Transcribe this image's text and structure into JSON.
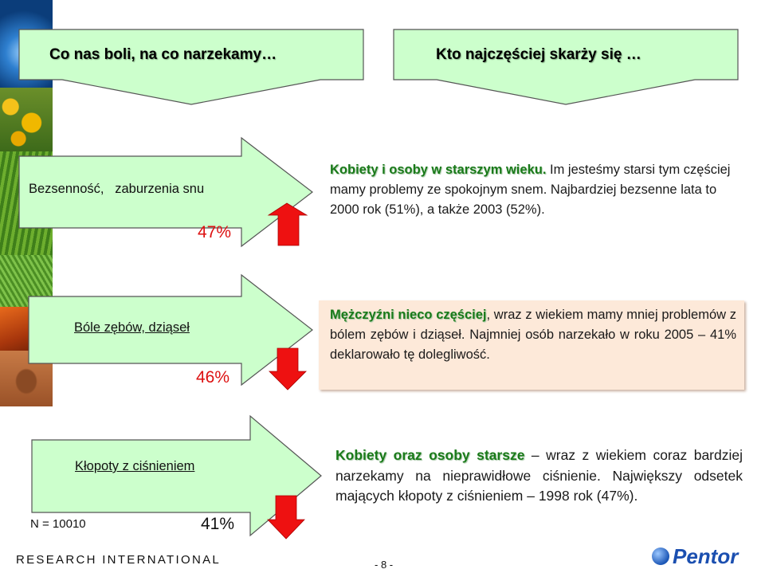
{
  "header": {
    "left_title": "Co nas boli, na co narzekamy…",
    "right_title": "Kto najczęściej skarży się …"
  },
  "rows": [
    {
      "label": "Bezsenność,   zaburzenia snu",
      "percent": "47%",
      "trend": "up",
      "text_highlight": "Kobiety i osoby w starszym wieku.",
      "text_rest": " Im jesteśmy starsi tym częściej mamy problemy ze spokojnym snem. Najbardziej bezsenne lata to 2000 rok (51%), a także 2003 (52%)."
    },
    {
      "label": "Bóle zębów, dziąseł",
      "percent": "46%",
      "trend": "down",
      "text_highlight": "Mężczyźni nieco częściej",
      "text_rest": ", wraz z wiekiem mamy mniej problemów z bólem zębów i dziąseł. Najmniej osób narzekało w roku 2005 – 41% deklarowało tę dolegliwość."
    },
    {
      "label": "Kłopoty z ciśnieniem",
      "percent": "41%",
      "trend": "down",
      "sample": "N = 10010",
      "text_highlight": "Kobiety oraz osoby starsze",
      "text_rest": " – wraz z wiekiem coraz bardziej narzekamy na nieprawidłowe ciśnienie. Największy odsetek mających kłopoty z ciśnieniem – 1998 rok (47%)."
    }
  ],
  "footer": {
    "left_brand": "RESEARCH INTERNATIONAL",
    "page_number": "- 8 -",
    "right_brand": "Pentor"
  },
  "colors": {
    "arrow_fill": "#ccffcc",
    "percent_red": "#dd1111",
    "trend_arrow": "#ee1111",
    "highlight_green": "#1a7a1a",
    "peach_box": "#fde9d9"
  }
}
